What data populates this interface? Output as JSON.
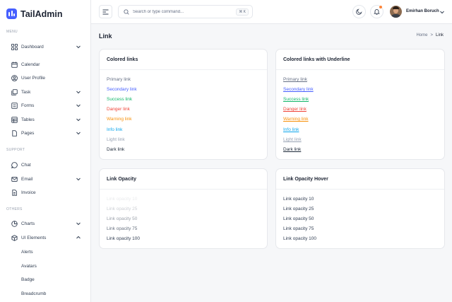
{
  "app": {
    "name": "TailAdmin"
  },
  "sidebar": {
    "sections": {
      "menu": "MENU",
      "support": "SUPPORT",
      "others": "OTHERS"
    },
    "items": [
      {
        "label": "Dashboard",
        "icon": "grid-icon",
        "chevron": "down"
      },
      {
        "label": "Calendar",
        "icon": "calendar-icon"
      },
      {
        "label": "User Profile",
        "icon": "user-icon"
      },
      {
        "label": "Task",
        "icon": "task-icon",
        "chevron": "down"
      },
      {
        "label": "Forms",
        "icon": "forms-icon",
        "chevron": "down"
      },
      {
        "label": "Tables",
        "icon": "table-icon",
        "chevron": "down"
      },
      {
        "label": "Pages",
        "icon": "pages-icon",
        "chevron": "down"
      },
      {
        "label": "Chat",
        "icon": "chat-icon"
      },
      {
        "label": "Email",
        "icon": "mail-icon",
        "chevron": "down"
      },
      {
        "label": "Invoice",
        "icon": "invoice-icon"
      },
      {
        "label": "Charts",
        "icon": "pie-chart-icon",
        "chevron": "down"
      },
      {
        "label": "UI Elements",
        "icon": "box-icon",
        "chevron": "up"
      }
    ],
    "ui_sub_items": [
      "Alerts",
      "Avatars",
      "Badge",
      "Breadcrumb"
    ]
  },
  "header": {
    "search_placeholder": "Search or type command...",
    "search_shortcut": "⌘ K",
    "user_name": "Emirhan Boruch"
  },
  "page": {
    "title": "Link",
    "breadcrumb": {
      "home": "Home",
      "separator": ">",
      "current": "Link"
    }
  },
  "cards": {
    "colored": {
      "title": "Colored links",
      "links": [
        "Primary link",
        "Secondary link",
        "Success link",
        "Danger link",
        "Warning link",
        "Info link",
        "Light link",
        "Dark link"
      ]
    },
    "colored_underline": {
      "title": "Colored links with Underline",
      "links": [
        "Primary link",
        "Secondary link",
        "Success link",
        "Danger link",
        "Warning link",
        "Info link",
        "Light link",
        "Dark link"
      ]
    },
    "opacity": {
      "title": "Link Opacity",
      "links": [
        "Link opacity 10",
        "Link opacity 25",
        "Link opacity 50",
        "Link opacity 75",
        "Link opacity 100"
      ]
    },
    "opacity_hover": {
      "title": "Link Opacity Hover",
      "links": [
        "Link opacity 10",
        "Link opacity 25",
        "Link opacity 50",
        "Link opacity 75",
        "Link opacity 100"
      ]
    }
  },
  "colors": {
    "brand": "#465fff",
    "primary": "#667085",
    "secondary": "#465fff",
    "success": "#12b76a",
    "danger": "#f04438",
    "warning": "#f79009",
    "info": "#0ba5ec",
    "light": "#98a2b3",
    "dark": "#1d2939",
    "notification_dot": "#fd853a"
  }
}
